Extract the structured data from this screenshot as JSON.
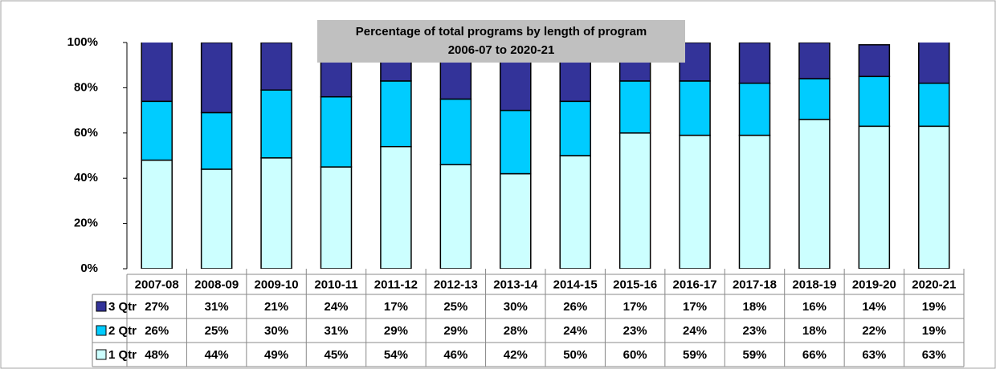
{
  "chart_data": {
    "type": "stacked_bar",
    "title": "Percentage of total programs by length of program",
    "subtitle": "2006-07 to 2020-21",
    "categories": [
      "2007-08",
      "2008-09",
      "2009-10",
      "2010-11",
      "2011-12",
      "2012-13",
      "2013-14",
      "2014-15",
      "2015-16",
      "2016-17",
      "2017-18",
      "2018-19",
      "2019-20",
      "2020-21"
    ],
    "series": [
      {
        "name": "3 Qtr",
        "color": "#333399",
        "values": [
          27,
          31,
          21,
          24,
          17,
          25,
          30,
          26,
          17,
          17,
          18,
          16,
          14,
          19
        ],
        "value_labels": [
          "27%",
          "31%",
          "21%",
          "24%",
          "17%",
          "25%",
          "30%",
          "26%",
          "17%",
          "17%",
          "18%",
          "16%",
          "14%",
          "19%"
        ]
      },
      {
        "name": "2 Qtr",
        "color": "#00ccff",
        "values": [
          26,
          25,
          30,
          31,
          29,
          29,
          28,
          24,
          23,
          24,
          23,
          18,
          22,
          19
        ],
        "value_labels": [
          "26%",
          "25%",
          "30%",
          "31%",
          "29%",
          "29%",
          "28%",
          "24%",
          "23%",
          "24%",
          "23%",
          "18%",
          "22%",
          "19%"
        ]
      },
      {
        "name": "1 Qtr",
        "color": "#ccffff",
        "values": [
          48,
          44,
          49,
          45,
          54,
          46,
          42,
          50,
          60,
          59,
          59,
          66,
          63,
          63
        ],
        "value_labels": [
          "48%",
          "44%",
          "49%",
          "45%",
          "54%",
          "46%",
          "42%",
          "50%",
          "60%",
          "59%",
          "59%",
          "66%",
          "63%",
          "63%"
        ]
      }
    ],
    "ylim": [
      0,
      100
    ],
    "yticks": [
      {
        "value": 0,
        "label": "0%"
      },
      {
        "value": 20,
        "label": "20%"
      },
      {
        "value": 40,
        "label": "40%"
      },
      {
        "value": 60,
        "label": "60%"
      },
      {
        "value": 80,
        "label": "80%"
      },
      {
        "value": 100,
        "label": "100%"
      }
    ],
    "grid": false
  }
}
